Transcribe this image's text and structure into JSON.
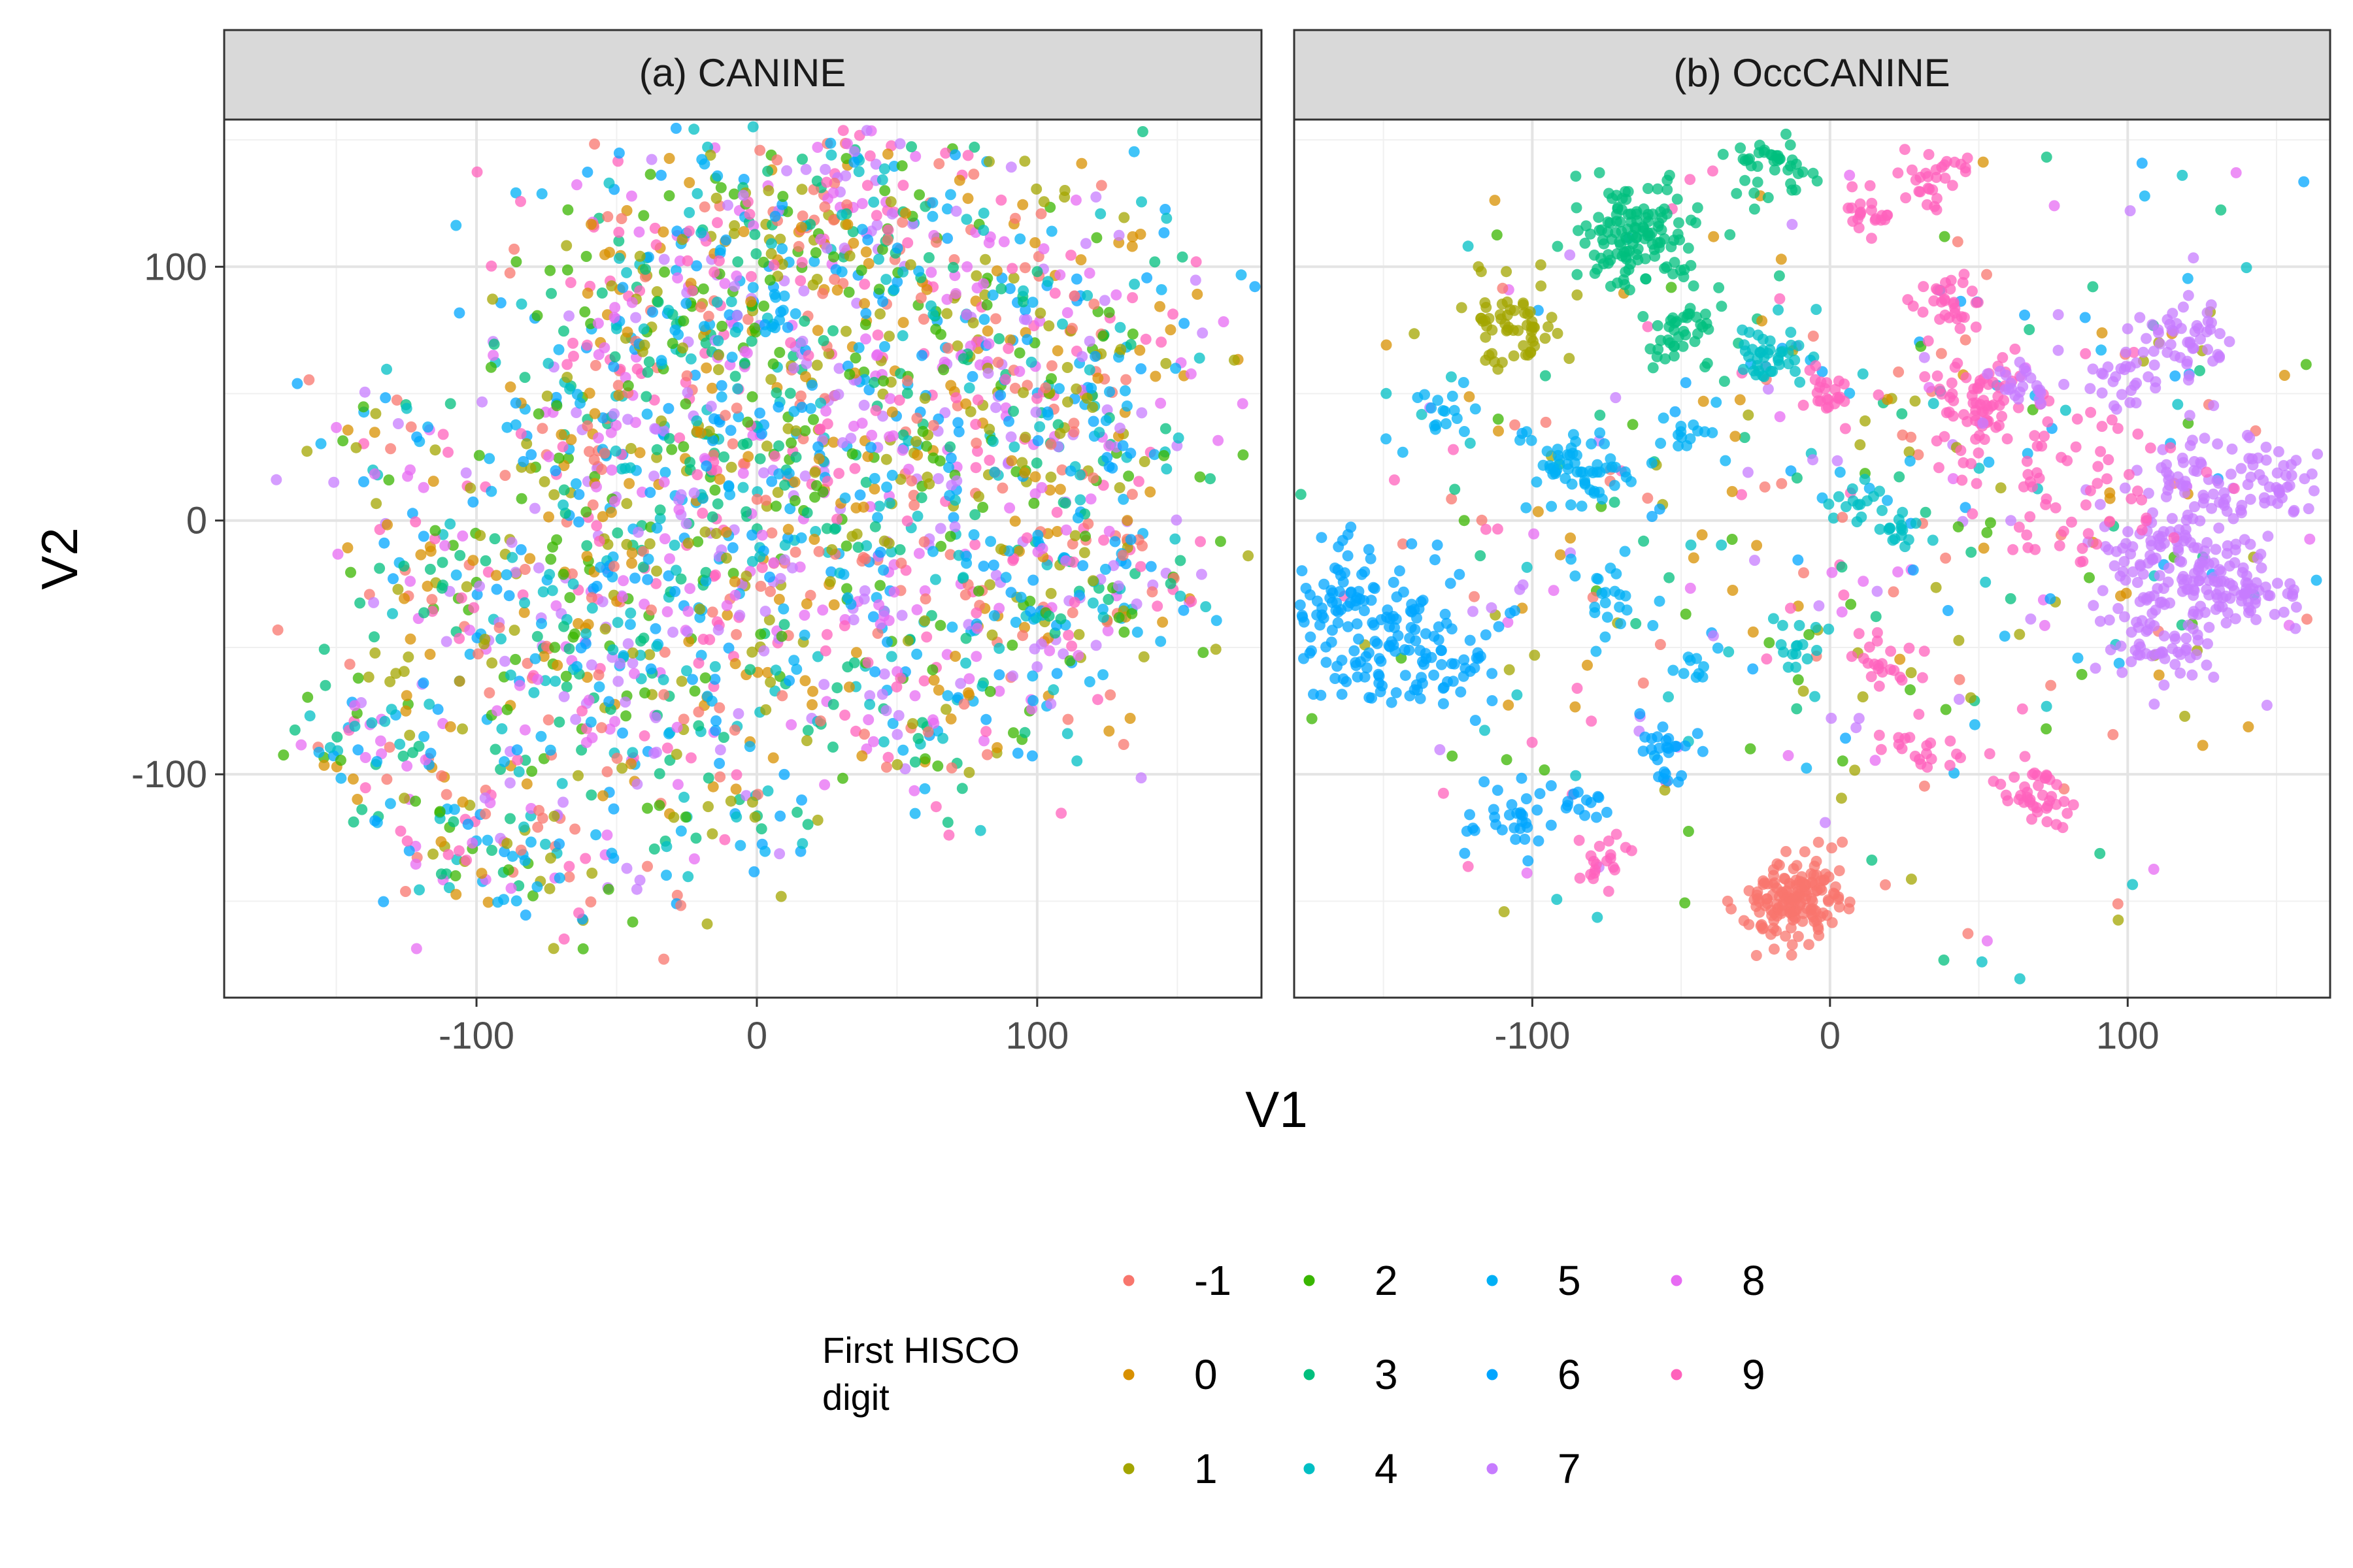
{
  "chart_data": {
    "type": "scatter",
    "xlabel": "V1",
    "ylabel": "V2",
    "x_ticks": [
      -100,
      0,
      100
    ],
    "y_ticks": [
      -100,
      0,
      100
    ],
    "grid": true,
    "legend": {
      "title_line1": "First HISCO",
      "title_line2": "digit",
      "placement": "bottom",
      "entries": [
        {
          "label": "-1",
          "color": "#F8766D"
        },
        {
          "label": "0",
          "color": "#D89000"
        },
        {
          "label": "1",
          "color": "#A3A500"
        },
        {
          "label": "2",
          "color": "#39B600"
        },
        {
          "label": "3",
          "color": "#00BF7D"
        },
        {
          "label": "4",
          "color": "#00BFC4"
        },
        {
          "label": "5",
          "color": "#00B0F6"
        },
        {
          "label": "6",
          "color": "#00A5FF"
        },
        {
          "label": "7",
          "color": "#C77CFF"
        },
        {
          "label": "8",
          "color": "#E76BF3"
        },
        {
          "label": "9",
          "color": "#FF62BC"
        }
      ]
    },
    "panels": [
      {
        "title": "(a) CANINE",
        "xlim": [
          -190,
          180
        ],
        "ylim": [
          -188,
          158
        ],
        "point_count_per_region": 1,
        "regions": [
          {
            "cx": -140,
            "cy": -85,
            "r": 14,
            "n": 60
          },
          {
            "cx": -105,
            "cy": -125,
            "r": 18,
            "n": 70
          },
          {
            "cx": -75,
            "cy": -130,
            "r": 16,
            "n": 60
          },
          {
            "cx": -120,
            "cy": -20,
            "r": 15,
            "n": 40
          },
          {
            "cx": -90,
            "cy": -50,
            "r": 30,
            "n": 140
          },
          {
            "cx": -60,
            "cy": 20,
            "r": 35,
            "n": 180
          },
          {
            "cx": -40,
            "cy": 80,
            "r": 30,
            "n": 160
          },
          {
            "cx": 0,
            "cy": 110,
            "r": 30,
            "n": 170
          },
          {
            "cx": 40,
            "cy": 120,
            "r": 25,
            "n": 130
          },
          {
            "cx": 80,
            "cy": 95,
            "r": 30,
            "n": 140
          },
          {
            "cx": 120,
            "cy": 70,
            "r": 25,
            "n": 110
          },
          {
            "cx": 0,
            "cy": 40,
            "r": 40,
            "n": 260
          },
          {
            "cx": 60,
            "cy": 40,
            "r": 35,
            "n": 220
          },
          {
            "cx": 110,
            "cy": 20,
            "r": 30,
            "n": 140
          },
          {
            "cx": -30,
            "cy": -40,
            "r": 35,
            "n": 200
          },
          {
            "cx": 30,
            "cy": -30,
            "r": 35,
            "n": 200
          },
          {
            "cx": 90,
            "cy": -40,
            "r": 30,
            "n": 140
          },
          {
            "cx": 130,
            "cy": -25,
            "r": 15,
            "n": 80
          },
          {
            "cx": -30,
            "cy": -100,
            "r": 25,
            "n": 90
          },
          {
            "cx": 60,
            "cy": -85,
            "r": 18,
            "n": 50
          },
          {
            "cx": 10,
            "cy": -120,
            "r": 8,
            "n": 15
          },
          {
            "cx": -130,
            "cy": 30,
            "r": 15,
            "n": 40
          }
        ]
      },
      {
        "title": "(b) OccCANINE",
        "xlim": [
          -180,
          168
        ],
        "ylim": [
          -188,
          158
        ],
        "point_count_per_region": 1,
        "clusters": [
          {
            "cx": -160,
            "cy": -40,
            "r": 14,
            "n": 140,
            "cat": 7
          },
          {
            "cx": -135,
            "cy": -55,
            "r": 12,
            "n": 60,
            "cat": 7
          },
          {
            "cx": -105,
            "cy": -120,
            "r": 8,
            "n": 30,
            "cat": 7
          },
          {
            "cx": -85,
            "cy": -110,
            "r": 6,
            "n": 15,
            "cat": 7
          },
          {
            "cx": -65,
            "cy": 112,
            "r": 10,
            "n": 130,
            "cat": 4
          },
          {
            "cx": -105,
            "cy": 78,
            "r": 8,
            "n": 60,
            "cat": 2
          },
          {
            "cx": -20,
            "cy": 138,
            "r": 6,
            "n": 40,
            "cat": 4
          },
          {
            "cx": -50,
            "cy": 75,
            "r": 8,
            "n": 40,
            "cat": 4
          },
          {
            "cx": -18,
            "cy": 65,
            "r": 7,
            "n": 40,
            "cat": 5
          },
          {
            "cx": -85,
            "cy": 20,
            "r": 10,
            "n": 60,
            "cat": 6
          },
          {
            "cx": -130,
            "cy": 42,
            "r": 5,
            "n": 15,
            "cat": 6
          },
          {
            "cx": -75,
            "cy": -30,
            "r": 6,
            "n": 20,
            "cat": 6
          },
          {
            "cx": -12,
            "cy": -150,
            "r": 8,
            "n": 160,
            "cat": 0
          },
          {
            "cx": 70,
            "cy": -108,
            "r": 6,
            "n": 40,
            "cat": 10
          },
          {
            "cx": -75,
            "cy": -132,
            "r": 5,
            "n": 20,
            "cat": 10
          },
          {
            "cx": -55,
            "cy": -90,
            "r": 6,
            "n": 25,
            "cat": 7
          },
          {
            "cx": 115,
            "cy": -15,
            "r": 14,
            "n": 140,
            "cat": 8
          },
          {
            "cx": 145,
            "cy": 15,
            "r": 8,
            "n": 50,
            "cat": 8
          },
          {
            "cx": 140,
            "cy": -30,
            "r": 9,
            "n": 60,
            "cat": 8
          },
          {
            "cx": 120,
            "cy": 70,
            "r": 8,
            "n": 50,
            "cat": 8
          },
          {
            "cx": 115,
            "cy": -50,
            "r": 10,
            "n": 50,
            "cat": 8
          },
          {
            "cx": 120,
            "cy": 20,
            "r": 7,
            "n": 30,
            "cat": 8
          },
          {
            "cx": 35,
            "cy": 136,
            "r": 6,
            "n": 30,
            "cat": 10
          },
          {
            "cx": 15,
            "cy": 120,
            "r": 5,
            "n": 20,
            "cat": 10
          },
          {
            "cx": 40,
            "cy": 85,
            "r": 6,
            "n": 30,
            "cat": 10
          },
          {
            "cx": 50,
            "cy": 45,
            "r": 8,
            "n": 50,
            "cat": 10
          },
          {
            "cx": 80,
            "cy": 20,
            "r": 20,
            "n": 80,
            "cat": 10
          },
          {
            "cx": 30,
            "cy": -90,
            "r": 6,
            "n": 20,
            "cat": 10
          },
          {
            "cx": 15,
            "cy": -55,
            "r": 6,
            "n": 20,
            "cat": 10
          },
          {
            "cx": 0,
            "cy": 50,
            "r": 6,
            "n": 25,
            "cat": 10
          },
          {
            "cx": 65,
            "cy": 55,
            "r": 6,
            "n": 25,
            "cat": 8
          },
          {
            "cx": 100,
            "cy": 55,
            "r": 6,
            "n": 25,
            "cat": 8
          },
          {
            "cx": 10,
            "cy": 10,
            "r": 5,
            "n": 15,
            "cat": 5
          },
          {
            "cx": 25,
            "cy": -5,
            "r": 5,
            "n": 15,
            "cat": 5
          },
          {
            "cx": -10,
            "cy": -50,
            "r": 5,
            "n": 15,
            "cat": 5
          },
          {
            "cx": -45,
            "cy": 35,
            "r": 5,
            "n": 15,
            "cat": 6
          },
          {
            "cx": -45,
            "cy": -55,
            "r": 4,
            "n": 10,
            "cat": 6
          }
        ],
        "scatter": [
          {
            "cx": 0,
            "cy": 0,
            "r": 90,
            "n": 450
          }
        ]
      }
    ]
  }
}
